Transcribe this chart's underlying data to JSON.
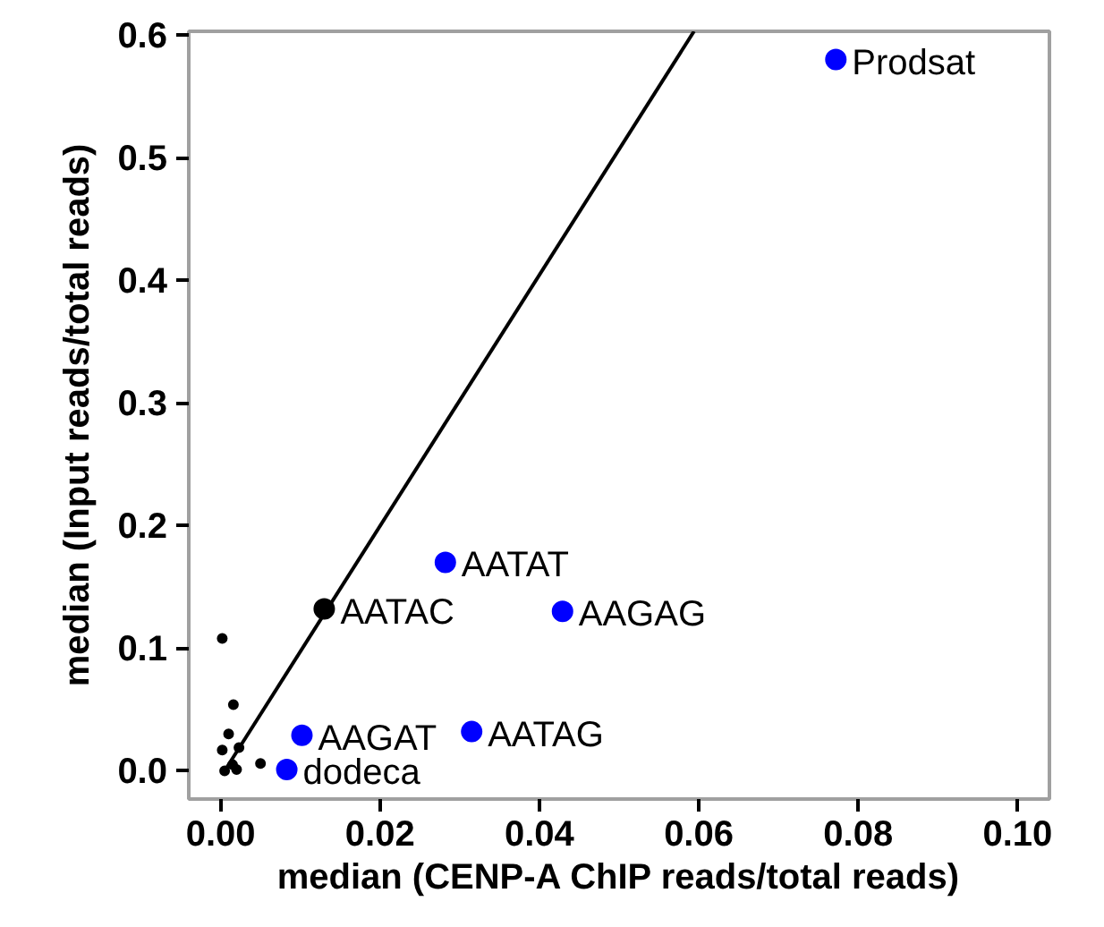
{
  "chart_data": {
    "type": "scatter",
    "xlabel": "median (CENP-A ChIP reads/total reads)",
    "ylabel": "median (Input reads/total reads)",
    "xlim": [
      -0.004,
      0.104
    ],
    "ylim": [
      -0.023,
      0.603
    ],
    "xticks": [
      {
        "value": 0,
        "label": "0.00"
      },
      0.02,
      0.04,
      0.06,
      0.08,
      {
        "value": 0.1,
        "label": "0.10"
      }
    ],
    "yticks": [
      {
        "value": 0,
        "label": "0.0"
      },
      0.1,
      0.2,
      0.3,
      0.4,
      0.5,
      0.6
    ],
    "grid": false,
    "marker": "circle",
    "series": [
      {
        "type": "line",
        "color": "#000000",
        "x": [
          0.0005,
          0.0594
        ],
        "values": [
          0.0,
          0.603
        ],
        "line_style": "solid",
        "marker": "none"
      },
      {
        "color": "#000000",
        "x": [
          0.0002,
          0.0016,
          0.001,
          0.0023,
          0.0002,
          0.005,
          0.0005,
          0.002,
          0.0015
        ],
        "values": [
          0.108,
          0.054,
          0.03,
          0.019,
          0.017,
          0.006,
          0.0,
          0.001,
          0.005
        ]
      },
      {
        "color": "#000000",
        "x": [
          0.013
        ],
        "values": [
          0.132
        ]
      },
      {
        "color": "#0000ff",
        "x": [
          0.0772,
          0.0282,
          0.0429,
          0.0102,
          0.0315,
          0.0083
        ],
        "values": [
          0.58,
          0.17,
          0.13,
          0.029,
          0.032,
          0.001
        ]
      }
    ],
    "annotations": [
      {
        "text": "Prodsat",
        "x": 0.0772,
        "y": 0.58
      },
      {
        "text": "AATAT",
        "x": 0.0282,
        "y": 0.17
      },
      {
        "text": "AATAC",
        "x": 0.013,
        "y": 0.132
      },
      {
        "text": "AAGAG",
        "x": 0.0429,
        "y": 0.13
      },
      {
        "text": "AAGAT",
        "x": 0.0102,
        "y": 0.029
      },
      {
        "text": "AATAG",
        "x": 0.0315,
        "y": 0.032
      },
      {
        "text": "dodeca",
        "x": 0.0083,
        "y": 0.001
      }
    ]
  }
}
